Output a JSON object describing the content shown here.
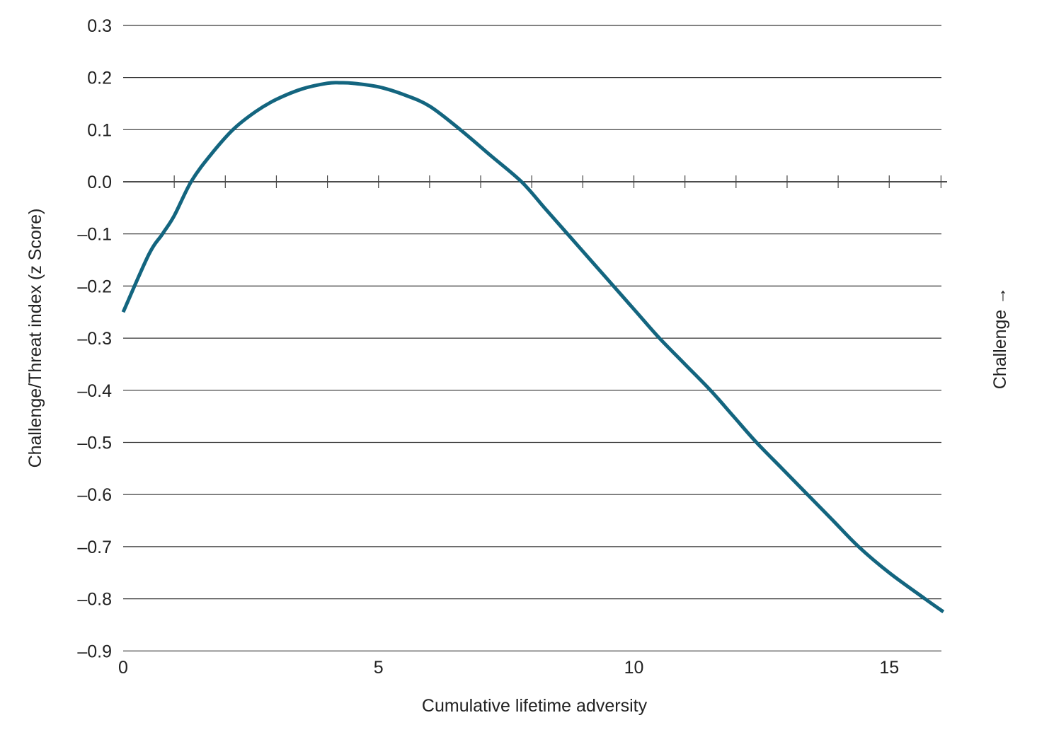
{
  "chart_data": {
    "type": "line",
    "title": "",
    "xlabel": "Cumulative lifetime adversity",
    "ylabel": "Challenge/Threat index (z Score)",
    "right_annotation": "Challenge →",
    "xlim": [
      0,
      16
    ],
    "ylim": [
      -0.9,
      0.3
    ],
    "x_ticks": [
      0,
      5,
      10,
      15
    ],
    "x_tick_labels": [
      "0",
      "5",
      "10",
      "15"
    ],
    "x_minor_ticks_on_zero_line": [
      1,
      2,
      3,
      4,
      5,
      6,
      7,
      8,
      9,
      10,
      11,
      12,
      13,
      14,
      15,
      16
    ],
    "y_ticks": [
      0.3,
      0.2,
      0.1,
      0.0,
      -0.1,
      -0.2,
      -0.3,
      -0.4,
      -0.5,
      -0.6,
      -0.7,
      -0.8,
      -0.9
    ],
    "y_tick_labels": [
      "0.3",
      "0.2",
      "0.1",
      "0.0",
      "–0.1",
      "–0.2",
      "–0.3",
      "–0.4",
      "–0.5",
      "–0.6",
      "–0.7",
      "–0.8",
      "–0.9"
    ],
    "grid": "horizontal",
    "legend": "none",
    "series": [
      {
        "name": "Challenge/Threat index",
        "color": "#13657f",
        "x": [
          0,
          0.5,
          0.77,
          1.0,
          1.33,
          1.7,
          2.15,
          2.6,
          3.0,
          3.5,
          4.0,
          4.25,
          4.5,
          5.0,
          5.5,
          6.0,
          6.6,
          7.2,
          7.8,
          8.25,
          8.7,
          9.15,
          9.6,
          10.05,
          10.5,
          11.0,
          11.5,
          11.95,
          12.4,
          12.9,
          13.4,
          13.9,
          14.4,
          15.0,
          15.7,
          16.06
        ],
        "values": [
          -0.25,
          -0.14,
          -0.1,
          -0.065,
          0.0,
          0.05,
          0.1,
          0.135,
          0.158,
          0.178,
          0.189,
          0.19,
          0.189,
          0.182,
          0.167,
          0.145,
          0.1,
          0.05,
          0.0,
          -0.05,
          -0.1,
          -0.15,
          -0.2,
          -0.25,
          -0.3,
          -0.35,
          -0.4,
          -0.45,
          -0.5,
          -0.55,
          -0.6,
          -0.65,
          -0.7,
          -0.75,
          -0.8,
          -0.825
        ]
      }
    ]
  },
  "labels": {
    "xlabel": "Cumulative lifetime adversity",
    "ylabel": "Challenge/Threat index (z Score)",
    "right_annotation": "Challenge →"
  },
  "style": {
    "line_color": "#13657f",
    "grid_color": "#333333",
    "text_color": "#222222"
  }
}
